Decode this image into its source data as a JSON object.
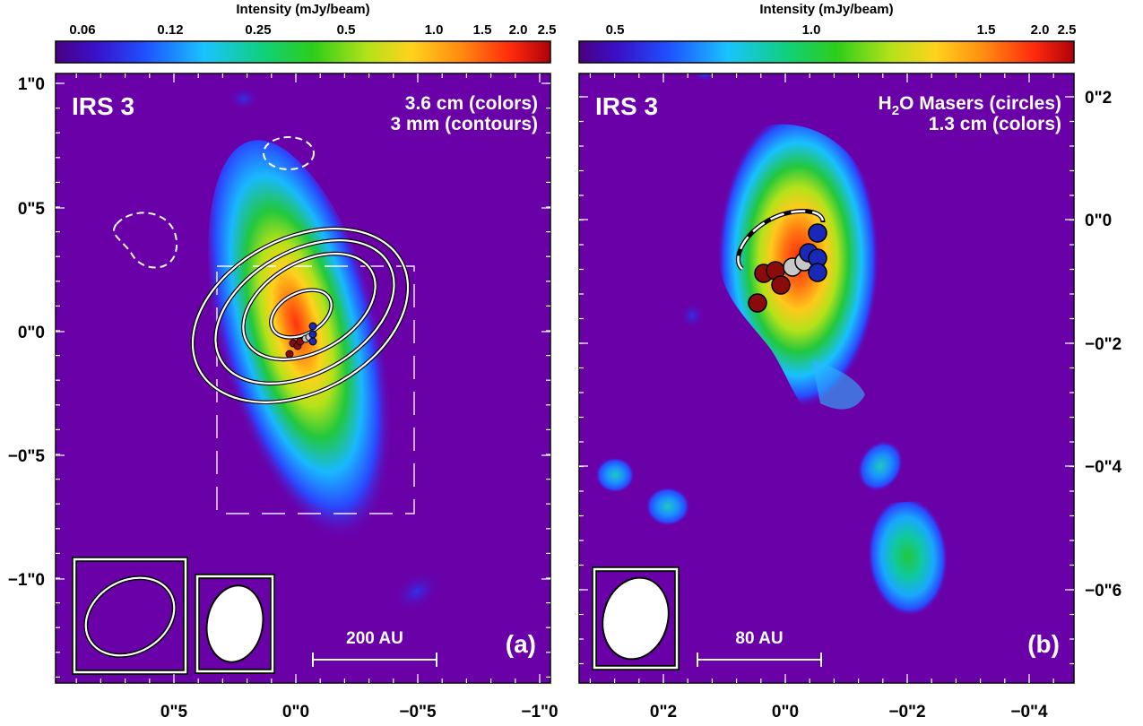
{
  "panel_a": {
    "label": "IRS 3",
    "legend_line1": "3.6 cm (colors)",
    "legend_line2": "3 mm (contours)",
    "panel_tag": "(a)",
    "scalebar": "200 AU",
    "colorbar_title": "Intensity (mJy/beam)",
    "colorbar_ticks": [
      "0.06",
      "0.12",
      "0.25",
      "0.5",
      "1.0",
      "1.5",
      "2.0",
      "2.5"
    ],
    "y_ticks": [
      "1\"0",
      "0\"5",
      "0\"0",
      "−0\"5",
      "−1\"0"
    ],
    "x_ticks": [
      "0\"5",
      "0\"0",
      "−0\"5",
      "−1\"0"
    ]
  },
  "panel_b": {
    "label": "IRS 3",
    "legend_line1_pre": "H",
    "legend_line1_sub": "2",
    "legend_line1_post": "O Masers (circles)",
    "legend_line2": "1.3 cm (colors)",
    "panel_tag": "(b)",
    "scalebar": "80 AU",
    "colorbar_title": "Intensity (mJy/beam)",
    "colorbar_ticks": [
      "0.5",
      "1.0",
      "1.5",
      "2.0",
      "2.5"
    ],
    "y_ticks": [
      "0\"2",
      "0\"0",
      "−0\"2",
      "−0\"4",
      "−0\"6"
    ],
    "x_ticks": [
      "0\"2",
      "0\"0",
      "−0\"2",
      "−0\"4"
    ]
  },
  "colors": {
    "background": "#6a00a8",
    "frame": "#ffffff",
    "maser_red": "#8b0a0a",
    "maser_blue": "#1a28b8",
    "maser_gray": "#c8c8c8"
  }
}
